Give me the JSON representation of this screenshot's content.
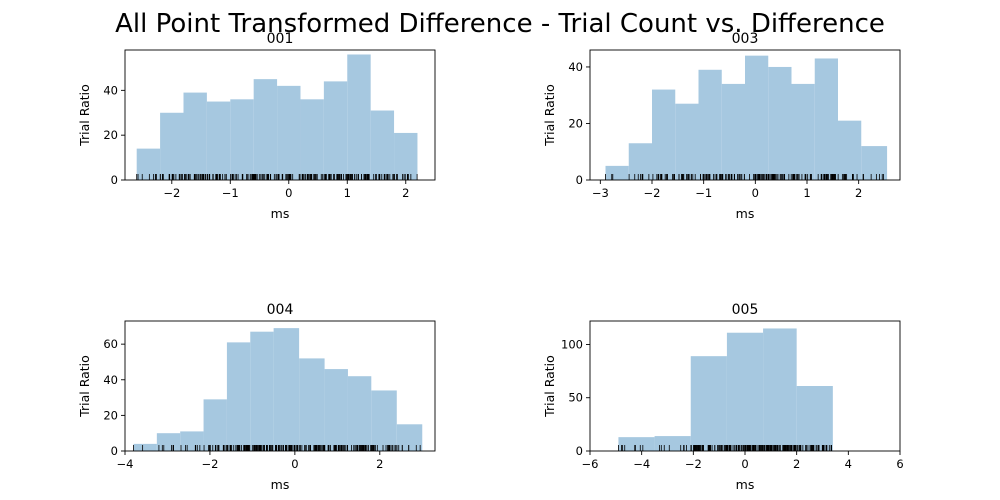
{
  "figure": {
    "title": "All Point Transformed Difference - Trial Count vs. Difference",
    "bar_color": "#a6c8e0",
    "rug_color": "#000000"
  },
  "chart_data": [
    {
      "type": "bar",
      "title": "001",
      "xlabel": "ms",
      "ylabel": "Trial Ratio",
      "xlim": [
        -2.8,
        2.5
      ],
      "ylim": [
        0,
        58
      ],
      "xticks": [
        -2,
        -1,
        0,
        1,
        2
      ],
      "yticks": [
        0,
        20,
        40
      ],
      "bins": [
        {
          "x0": -2.6,
          "x1": -2.2,
          "y": 14
        },
        {
          "x0": -2.2,
          "x1": -1.8,
          "y": 30
        },
        {
          "x0": -1.8,
          "x1": -1.4,
          "y": 39
        },
        {
          "x0": -1.4,
          "x1": -1.0,
          "y": 35
        },
        {
          "x0": -1.0,
          "x1": -0.6,
          "y": 36
        },
        {
          "x0": -0.6,
          "x1": -0.2,
          "y": 45
        },
        {
          "x0": -0.2,
          "x1": 0.2,
          "y": 42
        },
        {
          "x0": 0.2,
          "x1": 0.6,
          "y": 36
        },
        {
          "x0": 0.6,
          "x1": 1.0,
          "y": 44
        },
        {
          "x0": 1.0,
          "x1": 1.4,
          "y": 56
        },
        {
          "x0": 1.4,
          "x1": 1.8,
          "y": 31
        },
        {
          "x0": 1.8,
          "x1": 2.2,
          "y": 21
        }
      ],
      "rug_range": [
        -2.6,
        2.3
      ]
    },
    {
      "type": "bar",
      "title": "003",
      "xlabel": "ms",
      "ylabel": "Trial Ratio",
      "xlim": [
        -3.2,
        2.8
      ],
      "ylim": [
        0,
        46
      ],
      "xticks": [
        -3,
        -2,
        -1,
        0,
        1,
        2
      ],
      "yticks": [
        0,
        20,
        40
      ],
      "bins": [
        {
          "x0": -2.9,
          "x1": -2.45,
          "y": 5
        },
        {
          "x0": -2.45,
          "x1": -2.0,
          "y": 13
        },
        {
          "x0": -2.0,
          "x1": -1.55,
          "y": 32
        },
        {
          "x0": -1.55,
          "x1": -1.1,
          "y": 27
        },
        {
          "x0": -1.1,
          "x1": -0.65,
          "y": 39
        },
        {
          "x0": -0.65,
          "x1": -0.2,
          "y": 34
        },
        {
          "x0": -0.2,
          "x1": 0.25,
          "y": 44
        },
        {
          "x0": 0.25,
          "x1": 0.7,
          "y": 40
        },
        {
          "x0": 0.7,
          "x1": 1.15,
          "y": 34
        },
        {
          "x0": 1.15,
          "x1": 1.6,
          "y": 43
        },
        {
          "x0": 1.6,
          "x1": 2.05,
          "y": 21
        },
        {
          "x0": 2.05,
          "x1": 2.55,
          "y": 12
        }
      ],
      "rug_range": [
        -2.9,
        2.5
      ]
    },
    {
      "type": "bar",
      "title": "004",
      "xlabel": "ms",
      "ylabel": "Trial Ratio",
      "xlim": [
        -4.0,
        3.3
      ],
      "ylim": [
        0,
        73
      ],
      "xticks": [
        -4,
        -2,
        0,
        2
      ],
      "yticks": [
        0,
        20,
        40,
        60
      ],
      "bins": [
        {
          "x0": -3.8,
          "x1": -3.25,
          "y": 4
        },
        {
          "x0": -3.25,
          "x1": -2.7,
          "y": 10
        },
        {
          "x0": -2.7,
          "x1": -2.15,
          "y": 11
        },
        {
          "x0": -2.15,
          "x1": -1.6,
          "y": 29
        },
        {
          "x0": -1.6,
          "x1": -1.05,
          "y": 61
        },
        {
          "x0": -1.05,
          "x1": -0.5,
          "y": 67
        },
        {
          "x0": -0.5,
          "x1": 0.1,
          "y": 69
        },
        {
          "x0": 0.1,
          "x1": 0.7,
          "y": 52
        },
        {
          "x0": 0.7,
          "x1": 1.25,
          "y": 46
        },
        {
          "x0": 1.25,
          "x1": 1.8,
          "y": 42
        },
        {
          "x0": 1.8,
          "x1": 2.4,
          "y": 34
        },
        {
          "x0": 2.4,
          "x1": 3.0,
          "y": 15
        }
      ],
      "rug_range": [
        -3.8,
        3.0
      ]
    },
    {
      "type": "bar",
      "title": "005",
      "xlabel": "ms",
      "ylabel": "Trial Ratio",
      "xlim": [
        -6,
        6
      ],
      "ylim": [
        0,
        122
      ],
      "xticks": [
        -6,
        -4,
        -2,
        0,
        2,
        4,
        6
      ],
      "yticks": [
        0,
        50,
        100
      ],
      "bins": [
        {
          "x0": -4.9,
          "x1": -3.5,
          "y": 13
        },
        {
          "x0": -3.5,
          "x1": -2.1,
          "y": 14
        },
        {
          "x0": -2.1,
          "x1": -0.7,
          "y": 89
        },
        {
          "x0": -0.7,
          "x1": 0.7,
          "y": 111
        },
        {
          "x0": 0.7,
          "x1": 2.0,
          "y": 115
        },
        {
          "x0": 2.0,
          "x1": 3.4,
          "y": 61
        }
      ],
      "rug_range": [
        -5.2,
        3.4
      ]
    }
  ]
}
